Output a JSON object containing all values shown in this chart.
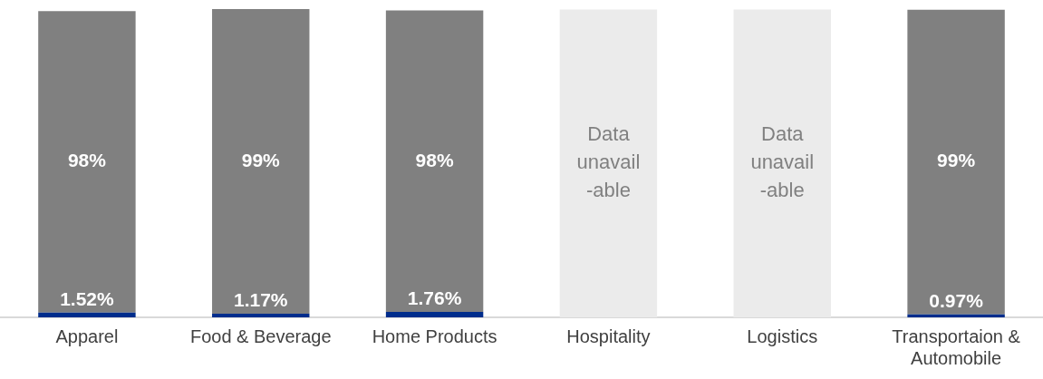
{
  "chart_data": {
    "type": "bar",
    "stacked": true,
    "categories": [
      "Apparel",
      "Food & Beverage",
      "Home Products",
      "Hospitality",
      "Logistics",
      "Transportaion & Automobile"
    ],
    "series": [
      {
        "color": "#002d8c",
        "values": [
          1.52,
          1.17,
          1.76,
          null,
          null,
          0.97
        ],
        "value_labels": [
          "1.52%",
          "1.17%",
          "1.76%",
          null,
          null,
          "0.97%"
        ]
      },
      {
        "color": "#808080",
        "values": [
          98,
          99,
          98,
          null,
          null,
          99
        ],
        "value_labels": [
          "98%",
          "99%",
          "98%",
          null,
          null,
          "99%"
        ]
      },
      {
        "color": "#ebebeb",
        "values": [
          null,
          null,
          null,
          100,
          100,
          null
        ],
        "value_labels": [
          null,
          null,
          null,
          "Data\nunavail\n-able",
          "Data\nunavail\n-able",
          null
        ]
      }
    ]
  }
}
